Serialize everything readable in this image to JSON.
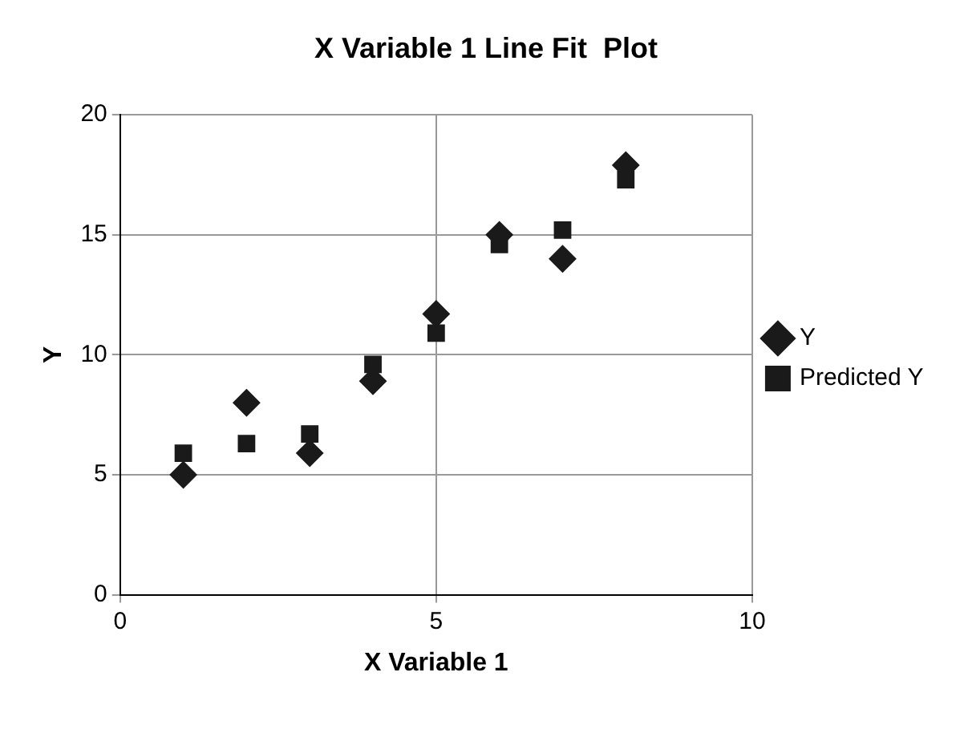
{
  "chart_data": {
    "type": "scatter",
    "title": "X Variable 1 Line Fit  Plot",
    "xlabel": "X Variable 1",
    "ylabel": "Y",
    "xlim": [
      0,
      10
    ],
    "xticks": [
      0,
      5,
      10
    ],
    "ylim": [
      0,
      20
    ],
    "yticks": [
      0,
      5,
      10,
      15,
      20
    ],
    "grid": true,
    "legend": "right",
    "series": [
      {
        "name": "Y",
        "color": "#1a1a1a",
        "marker": "diamond",
        "x": [
          1,
          2,
          3,
          4,
          5,
          6,
          7,
          8
        ],
        "values": [
          5.0,
          8.0,
          5.9,
          8.9,
          11.7,
          15.0,
          14.0,
          17.9
        ]
      },
      {
        "name": "Predicted Y",
        "color": "#1a1a1a",
        "marker": "square",
        "x": [
          1,
          2,
          3,
          4,
          5,
          6,
          7,
          8
        ],
        "values": [
          5.9,
          6.3,
          6.7,
          9.6,
          10.9,
          14.6,
          15.2,
          17.3
        ]
      }
    ]
  }
}
